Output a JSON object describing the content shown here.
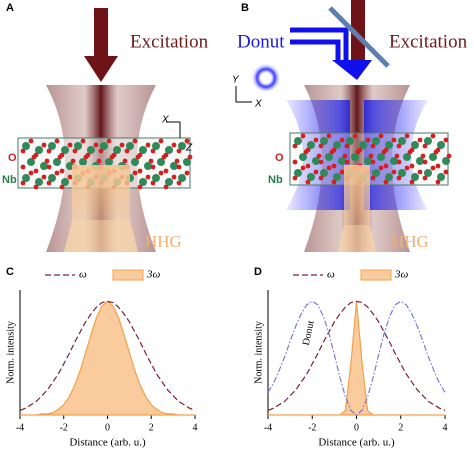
{
  "panels": [
    {
      "label": "A",
      "excitation": "Excitation",
      "hhg": "HHG",
      "o": "O",
      "nb": "Nb",
      "axis_x": "X",
      "axis_z": "Z"
    },
    {
      "label": "B",
      "donut": "Donut",
      "excitation": "Excitation",
      "hhg": "HHG",
      "o": "O",
      "nb": "Nb",
      "axis_y": "Y",
      "axis_x": "X"
    }
  ],
  "chart_data": [
    {
      "type": "line",
      "label": "C",
      "x_label": "Distance (arb. u.)",
      "y_label": "Norm. intensity",
      "x": [
        -4,
        -3.75,
        -3.5,
        -3.25,
        -3,
        -2.75,
        -2.5,
        -2.25,
        -2,
        -1.75,
        -1.5,
        -1.25,
        -1,
        -0.75,
        -0.5,
        -0.25,
        0,
        0.25,
        0.5,
        0.75,
        1,
        1.25,
        1.5,
        1.75,
        2,
        2.25,
        2.5,
        2.75,
        3,
        3.25,
        3.5,
        3.75,
        4
      ],
      "xlim": [
        -4,
        4
      ],
      "xticks": [
        -4,
        -2,
        0,
        2,
        4
      ],
      "ylim": [
        0,
        1.1
      ],
      "series": [
        {
          "name": "ω",
          "color": "#7b2030",
          "style": "dashed",
          "values": [
            0.04,
            0.06,
            0.09,
            0.12,
            0.17,
            0.22,
            0.29,
            0.36,
            0.45,
            0.54,
            0.64,
            0.73,
            0.82,
            0.89,
            0.95,
            0.99,
            1,
            0.99,
            0.95,
            0.89,
            0.82,
            0.73,
            0.64,
            0.54,
            0.45,
            0.36,
            0.29,
            0.22,
            0.17,
            0.12,
            0.09,
            0.06,
            0.04
          ]
        },
        {
          "name": "3ω",
          "color": "#f5a04a",
          "style": "filled",
          "values": [
            0,
            0,
            0,
            0,
            0.01,
            0.01,
            0.02,
            0.05,
            0.09,
            0.16,
            0.26,
            0.39,
            0.55,
            0.71,
            0.86,
            0.96,
            1,
            0.96,
            0.86,
            0.71,
            0.55,
            0.39,
            0.26,
            0.16,
            0.09,
            0.05,
            0.02,
            0.01,
            0.01,
            0,
            0,
            0,
            0
          ]
        }
      ]
    },
    {
      "type": "line",
      "label": "D",
      "x_label": "Distance (arb. u.)",
      "y_label": "Norm. intensity",
      "annotation": "Donut",
      "x": [
        -4,
        -3.75,
        -3.5,
        -3.25,
        -3,
        -2.75,
        -2.5,
        -2.25,
        -2,
        -1.75,
        -1.5,
        -1.25,
        -1,
        -0.75,
        -0.5,
        -0.25,
        0,
        0.25,
        0.5,
        0.75,
        1,
        1.25,
        1.5,
        1.75,
        2,
        2.25,
        2.5,
        2.75,
        3,
        3.25,
        3.5,
        3.75,
        4
      ],
      "xlim": [
        -4,
        4
      ],
      "xticks": [
        -4,
        -2,
        0,
        2,
        4
      ],
      "ylim": [
        0,
        1.1
      ],
      "series": [
        {
          "name": "ω",
          "color": "#7b2030",
          "style": "dashed",
          "values": [
            0.04,
            0.06,
            0.09,
            0.12,
            0.17,
            0.22,
            0.29,
            0.36,
            0.45,
            0.54,
            0.64,
            0.73,
            0.82,
            0.89,
            0.95,
            0.99,
            1,
            0.99,
            0.95,
            0.89,
            0.82,
            0.73,
            0.64,
            0.54,
            0.45,
            0.36,
            0.29,
            0.22,
            0.17,
            0.12,
            0.09,
            0.06,
            0.04
          ]
        },
        {
          "name": "3ω",
          "color": "#f5a04a",
          "style": "filled",
          "values": [
            0,
            0,
            0,
            0,
            0,
            0,
            0,
            0,
            0,
            0,
            0,
            0,
            0,
            0,
            0.04,
            0.46,
            1,
            0.46,
            0.04,
            0,
            0,
            0,
            0,
            0,
            0,
            0,
            0,
            0,
            0,
            0,
            0,
            0,
            0
          ]
        },
        {
          "color": "#7a7ad8",
          "style": "dashdot",
          "values": [
            0.2,
            0.28,
            0.39,
            0.51,
            0.65,
            0.78,
            0.89,
            0.97,
            1,
            0.97,
            0.87,
            0.72,
            0.53,
            0.33,
            0.16,
            0.04,
            0,
            0.04,
            0.16,
            0.33,
            0.53,
            0.72,
            0.87,
            0.97,
            1,
            0.97,
            0.89,
            0.78,
            0.65,
            0.51,
            0.39,
            0.28,
            0.2
          ]
        }
      ]
    }
  ]
}
